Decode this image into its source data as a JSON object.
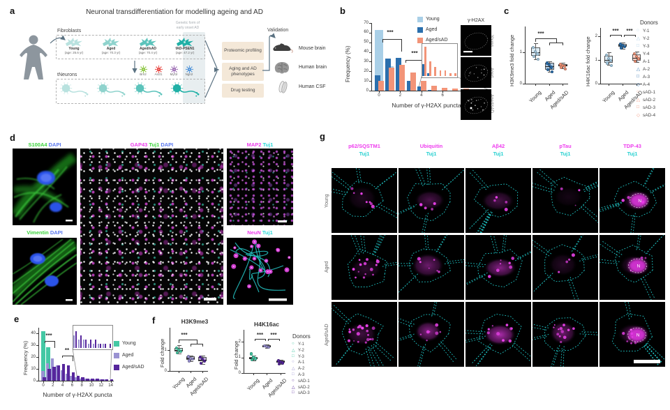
{
  "a": {
    "label": "a",
    "title": "Neuronal transdifferentiation for modelling ageing and AD",
    "fibroblasts_label": "Fibroblasts",
    "tneurons_label": "tNeurons",
    "genetic_note": [
      "Genetic form of",
      "early onset AD"
    ],
    "groups": [
      {
        "name": "Young",
        "age": "(age: 25.6 yr)"
      },
      {
        "name": "Aged",
        "age": "(age: 70.3 yr)"
      },
      {
        "name": "Aged/sAD",
        "age": "(age: 70.4 yr)"
      },
      {
        "name": "fAD-PSEN1",
        "age": "(age: 47.2 yr)"
      }
    ],
    "factors": [
      {
        "name": "Brn2",
        "color": "#8bc53f"
      },
      {
        "name": "Ascl1",
        "color": "#e8413c"
      },
      {
        "name": "Myt1l",
        "color": "#9b6bb3"
      },
      {
        "name": "Ngn2",
        "color": "#4a90d9"
      }
    ],
    "outputs": [
      "Proteomic profiling",
      "Aging and AD phenotypes",
      "Drug testing"
    ],
    "validation_label": "Validation",
    "validation_items": [
      "Mouse brain",
      "Human brain",
      "Human CSF"
    ],
    "cell_colors": [
      "#b9e2df",
      "#8fd3cd",
      "#5cc3bb",
      "#1fb0a6"
    ]
  },
  "b": {
    "label": "b",
    "image_label": "γ-H2AX",
    "image_rows": [
      "Young",
      "Aged",
      "Aged/sAD"
    ]
  },
  "c": {
    "label": "c",
    "donors_title": "Donors",
    "donors": [
      {
        "label": "Y-1",
        "shape": "○",
        "color": "#a9cfe7"
      },
      {
        "label": "Y-2",
        "shape": "△",
        "color": "#a9cfe7"
      },
      {
        "label": "Y-3",
        "shape": "□",
        "color": "#a9cfe7"
      },
      {
        "label": "Y-4",
        "shape": "◇",
        "color": "#a9cfe7"
      },
      {
        "label": "A-1",
        "shape": "○",
        "color": "#2b6fad"
      },
      {
        "label": "A-2",
        "shape": "△",
        "color": "#2b6fad"
      },
      {
        "label": "A-3",
        "shape": "□",
        "color": "#2b6fad"
      },
      {
        "label": "A-4",
        "shape": "◇",
        "color": "#2b6fad"
      },
      {
        "label": "sAD-1",
        "shape": "○",
        "color": "#f29478"
      },
      {
        "label": "sAD-2",
        "shape": "△",
        "color": "#f29478"
      },
      {
        "label": "sAD-3",
        "shape": "□",
        "color": "#f29478"
      },
      {
        "label": "sAD-4",
        "shape": "◇",
        "color": "#f29478"
      }
    ]
  },
  "d": {
    "label": "d",
    "headers": [
      {
        "parts": [
          {
            "text": "S100A4",
            "color": "#3bd43b"
          },
          {
            "text": " DAPI",
            "color": "#5a78f0"
          }
        ]
      },
      {
        "parts": [
          {
            "text": "GAP43",
            "color": "#ee3cee"
          },
          {
            "text": " Tuj1",
            "color": "#3bd43b"
          },
          {
            "text": " DAPI",
            "color": "#5a78f0"
          }
        ]
      },
      {
        "parts": [
          {
            "text": "MAP2",
            "color": "#ee3cee"
          },
          {
            "text": " Tuj1",
            "color": "#2bd9d9"
          }
        ]
      },
      {
        "parts": [
          {
            "text": "Vimentin",
            "color": "#3bd43b"
          },
          {
            "text": " DAPI",
            "color": "#5a78f0"
          }
        ]
      },
      {
        "parts": [
          {
            "text": "NeuN",
            "color": "#ee3cee"
          },
          {
            "text": " Tuj1",
            "color": "#2bd9d9"
          }
        ]
      }
    ]
  },
  "e": {
    "label": "e"
  },
  "f": {
    "label": "f",
    "donors_title": "Donors",
    "donors": [
      {
        "label": "Y-1",
        "shape": "○",
        "color": "#44c8a4"
      },
      {
        "label": "Y-2",
        "shape": "△",
        "color": "#44c8a4"
      },
      {
        "label": "Y-3",
        "shape": "□",
        "color": "#44c8a4"
      },
      {
        "label": "A-1",
        "shape": "○",
        "color": "#9a92d2"
      },
      {
        "label": "A-2",
        "shape": "△",
        "color": "#9a92d2"
      },
      {
        "label": "A-3",
        "shape": "□",
        "color": "#9a92d2"
      },
      {
        "label": "sAD-1",
        "shape": "○",
        "color": "#56269c"
      },
      {
        "label": "sAD-2",
        "shape": "△",
        "color": "#56269c"
      },
      {
        "label": "sAD-3",
        "shape": "□",
        "color": "#56269c"
      }
    ]
  },
  "g": {
    "label": "g",
    "columns": [
      "p62/SQSTM1",
      "Ubiquitin",
      "Aβ42",
      "pTau",
      "TDP-43"
    ],
    "tuj1": "Tuj1",
    "rows": [
      "Young",
      "Aged",
      "Aged/sAD"
    ],
    "nucleus_label": "N",
    "cells": [
      [
        "puncta-low",
        "diffuse-low",
        "diffuse-low",
        "faint",
        "nuclear"
      ],
      [
        "puncta-med",
        "diffuse-med",
        "bright",
        "faint-med",
        "nuclear"
      ],
      [
        "puncta-high",
        "bright",
        "bright-high",
        "bright-cluster",
        "nuclear-puncta"
      ]
    ],
    "label_colors": {
      "marker": "#ee3cee",
      "tuj1": "#25d0d0"
    }
  },
  "chart_data": [
    {
      "id": "b-histogram",
      "type": "bar",
      "xlabel": "Number of γ-H2AX puncta",
      "ylabel": "Frequency (%)",
      "categories": [
        0,
        1,
        2,
        3,
        4,
        5,
        6,
        7,
        8,
        9,
        10
      ],
      "xticks": [
        0,
        2,
        4,
        6,
        8,
        10
      ],
      "ylim": [
        0,
        70
      ],
      "yticks": [
        0,
        10,
        20,
        30,
        40,
        50,
        60,
        70
      ],
      "series": [
        {
          "name": "Young",
          "color": "#a9cfe7",
          "values": [
            63,
            25,
            10,
            3,
            1,
            0,
            0,
            0,
            0,
            0,
            0
          ]
        },
        {
          "name": "Aged",
          "color": "#2b6fad",
          "values": [
            16,
            33,
            34,
            10,
            4,
            1,
            0,
            0,
            0,
            0,
            0
          ]
        },
        {
          "name": "Aged/sAD",
          "color": "#f29478",
          "values": [
            10,
            24,
            27,
            19,
            10,
            5,
            3,
            2,
            2,
            1,
            1
          ]
        }
      ],
      "significance": [
        {
          "label": "***",
          "x1": 0,
          "x2": 2
        },
        {
          "label": "***",
          "x1": 2,
          "x2": 4
        }
      ],
      "inset_range": [
        4,
        10
      ],
      "legend_position": "top-right"
    },
    {
      "id": "c-H3K9me3",
      "type": "box",
      "ylabel": "H3K9me3 fold change",
      "ylim": [
        0,
        1.8
      ],
      "yticks": [
        0,
        1
      ],
      "categories": [
        "Young",
        "Aged",
        "Aged/sAD"
      ],
      "groups": [
        {
          "name": "Young",
          "color": "#a9cfe7",
          "lo": 0.78,
          "q1": 0.88,
          "median": 1.0,
          "q3": 1.15,
          "hi": 1.3,
          "points": [
            1.18,
            1.05,
            0.97,
            0.9,
            0.8
          ]
        },
        {
          "name": "Aged",
          "color": "#2b6fad",
          "lo": 0.37,
          "q1": 0.45,
          "median": 0.56,
          "q3": 0.66,
          "hi": 0.72,
          "points": [
            0.68,
            0.62,
            0.55,
            0.47,
            0.4
          ]
        },
        {
          "name": "Aged/sAD",
          "color": "#f29478",
          "lo": 0.48,
          "q1": 0.55,
          "median": 0.59,
          "q3": 0.63,
          "hi": 0.66,
          "points": [
            0.64,
            0.61,
            0.58,
            0.55,
            0.5
          ]
        }
      ],
      "significance": [
        {
          "label": "***",
          "type": "fork"
        }
      ]
    },
    {
      "id": "c-H4K16ac",
      "type": "box",
      "ylabel": "H4K16ac fold change",
      "ylim": [
        0,
        2.3
      ],
      "yticks": [
        0,
        1,
        2
      ],
      "categories": [
        "Young",
        "Aged",
        "Aged/sAD"
      ],
      "groups": [
        {
          "name": "Young",
          "color": "#a9cfe7",
          "lo": 0.78,
          "q1": 0.88,
          "median": 1.0,
          "q3": 1.18,
          "hi": 1.32,
          "points": [
            1.25,
            1.1,
            1.0,
            0.9,
            0.8
          ]
        },
        {
          "name": "Aged",
          "color": "#2b6fad",
          "lo": 1.48,
          "q1": 1.55,
          "median": 1.62,
          "q3": 1.68,
          "hi": 1.73,
          "points": [
            1.7,
            1.65,
            1.6,
            1.55
          ]
        },
        {
          "name": "Aged/sAD",
          "color": "#f29478",
          "lo": 0.9,
          "q1": 0.98,
          "median": 1.1,
          "q3": 1.25,
          "hi": 1.35,
          "points": [
            1.3,
            1.18,
            1.08,
            0.97
          ]
        }
      ],
      "significance": [
        {
          "label": "***",
          "x1": 0,
          "x2": 1
        },
        {
          "label": "***",
          "x1": 1,
          "x2": 2
        }
      ]
    },
    {
      "id": "e-histogram",
      "type": "bar",
      "xlabel": "Number of γ-H2AX puncta",
      "ylabel": "Frequency (%)",
      "categories": [
        0,
        1,
        2,
        3,
        4,
        5,
        6,
        7,
        8,
        9,
        10,
        11,
        12,
        13,
        14
      ],
      "xticks": [
        0,
        2,
        4,
        6,
        8,
        10,
        12,
        14
      ],
      "ylim": [
        0,
        45
      ],
      "yticks": [
        0,
        10,
        20,
        30,
        40
      ],
      "series": [
        {
          "name": "Young",
          "color": "#44c8a4",
          "values": [
            42,
            28,
            10,
            4,
            2,
            1,
            0,
            0,
            0,
            0,
            0,
            0,
            0,
            0,
            0
          ]
        },
        {
          "name": "Aged",
          "color": "#9a92d2",
          "values": [
            8,
            15,
            19,
            13,
            9,
            6,
            4,
            3,
            2,
            2,
            1,
            1,
            1,
            1,
            0
          ]
        },
        {
          "name": "Aged/sAD",
          "color": "#56269c",
          "values": [
            3,
            10,
            12,
            13,
            14,
            13,
            7,
            4,
            3,
            2,
            2,
            2,
            1,
            1,
            1
          ]
        }
      ],
      "significance": [
        {
          "label": "***",
          "x1": 0,
          "x2": 2
        },
        {
          "label": "**",
          "x1": 2,
          "x2": 4
        }
      ],
      "inset_range": [
        7,
        14
      ],
      "legend_position": "right"
    },
    {
      "id": "f-H3K9me3",
      "type": "box",
      "title": "H3K9me3",
      "ylabel": "Fold change",
      "ylim": [
        0,
        1.6
      ],
      "yticks": [
        0,
        1
      ],
      "categories": [
        "Young",
        "Aged",
        "Aged/sAD"
      ],
      "groups": [
        {
          "name": "Young",
          "color": "#44c8a4",
          "lo": 0.85,
          "q1": 0.92,
          "median": 1.0,
          "q3": 1.1,
          "hi": 1.22,
          "points": [
            1.15,
            1.05,
            0.98,
            0.9
          ]
        },
        {
          "name": "Aged",
          "color": "#9a92d2",
          "lo": 0.48,
          "q1": 0.55,
          "median": 0.62,
          "q3": 0.7,
          "hi": 0.75,
          "points": [
            0.72,
            0.65,
            0.6,
            0.52
          ]
        },
        {
          "name": "Aged/sAD",
          "color": "#56269c",
          "lo": 0.35,
          "q1": 0.45,
          "median": 0.55,
          "q3": 0.67,
          "hi": 0.73,
          "points": [
            0.7,
            0.6,
            0.5,
            0.4
          ]
        }
      ],
      "significance": [
        {
          "label": "***",
          "type": "fork"
        }
      ]
    },
    {
      "id": "f-H4K16ac",
      "type": "box",
      "title": "H4K16ac",
      "ylabel": "Fold change",
      "ylim": [
        0,
        2.3
      ],
      "yticks": [
        0,
        1,
        2
      ],
      "categories": [
        "Young",
        "Aged",
        "Aged/sAD"
      ],
      "groups": [
        {
          "name": "Young",
          "color": "#44c8a4",
          "lo": 0.82,
          "q1": 0.9,
          "median": 0.97,
          "q3": 1.03,
          "hi": 1.1,
          "points": [
            1.28,
            1.05,
            0.97,
            0.9
          ]
        },
        {
          "name": "Aged",
          "color": "#9a92d2",
          "lo": 1.62,
          "q1": 1.68,
          "median": 1.73,
          "q3": 1.78,
          "hi": 1.83,
          "points": [
            1.8,
            1.75,
            1.7
          ]
        },
        {
          "name": "Aged/sAD",
          "color": "#56269c",
          "lo": 0.6,
          "q1": 0.68,
          "median": 0.74,
          "q3": 0.8,
          "hi": 0.87,
          "points": [
            0.84,
            0.76,
            0.7,
            0.63
          ]
        }
      ],
      "significance": [
        {
          "label": "***",
          "x1": 0,
          "x2": 1
        },
        {
          "label": "***",
          "x1": 1,
          "x2": 2
        }
      ]
    }
  ]
}
